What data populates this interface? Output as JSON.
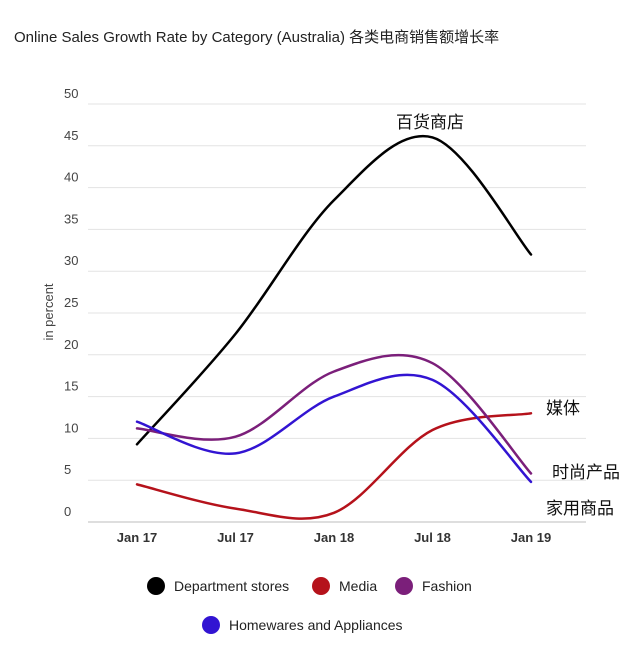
{
  "chart_data": {
    "type": "line",
    "title": "Online Sales Growth Rate by Category (Australia) 各类电商销售额增长率",
    "ylabel": "in percent",
    "xlabel": "",
    "categories": [
      "Jan 17",
      "Jul 17",
      "Jan 18",
      "Jul 18",
      "Jan 19"
    ],
    "ylim": [
      0,
      50
    ],
    "yticks": [
      0,
      5,
      10,
      15,
      20,
      25,
      30,
      35,
      40,
      45,
      50
    ],
    "grid": true,
    "legend_position": "bottom",
    "series": [
      {
        "name": "Department stores",
        "color": "#000000",
        "values": [
          9.3,
          22.5,
          38.5,
          46,
          32
        ]
      },
      {
        "name": "Media",
        "color": "#b5121b",
        "values": [
          4.5,
          1.6,
          1.1,
          11,
          13
        ]
      },
      {
        "name": "Fashion",
        "color": "#7b1f7a",
        "values": [
          11.2,
          10.2,
          18,
          19,
          5.8
        ]
      },
      {
        "name": "Homewares and Appliances",
        "color": "#3214d2",
        "values": [
          12,
          8.2,
          15,
          17,
          4.8
        ]
      }
    ],
    "annotations": [
      {
        "text": "百货商店",
        "series": "Department stores"
      },
      {
        "text": "媒体",
        "series": "Media"
      },
      {
        "text": "时尚产品",
        "series": "Fashion"
      },
      {
        "text": "家用商品",
        "series": "Homewares and Appliances"
      }
    ]
  }
}
